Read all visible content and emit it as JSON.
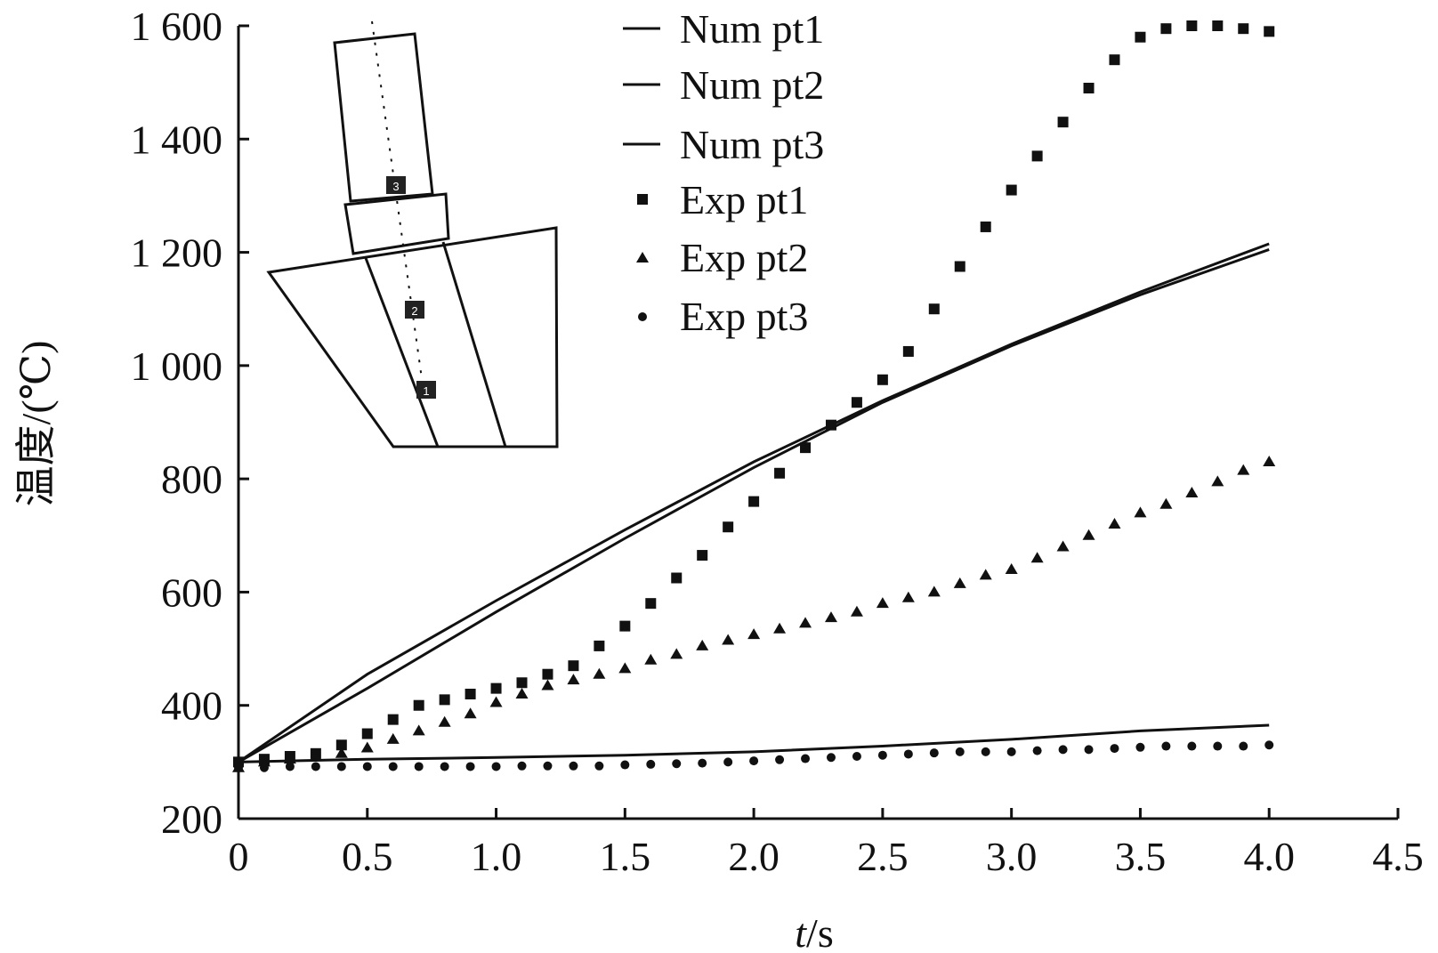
{
  "chart_data": {
    "type": "line",
    "xlabel_italic": "t",
    "xlabel_unit": "/s",
    "ylabel": "温度/(℃)",
    "xlim": [
      0,
      4.5
    ],
    "ylim": [
      200,
      1600
    ],
    "x_ticks": [
      0,
      0.5,
      1.0,
      1.5,
      2.0,
      2.5,
      3.0,
      3.5,
      4.0,
      4.5
    ],
    "x_tick_labels": [
      "0",
      "0.5",
      "1.0",
      "1.5",
      "2.0",
      "2.5",
      "3.0",
      "3.5",
      "4.0",
      "4.5"
    ],
    "y_ticks": [
      200,
      400,
      600,
      800,
      1000,
      1200,
      1400,
      1600
    ],
    "y_tick_labels": [
      "200",
      "400",
      "600",
      "800",
      "1 000",
      "1 200",
      "1 400",
      "1 600"
    ],
    "grid": false,
    "legend_position": "top-center",
    "series": [
      {
        "name": "Num pt1",
        "kind": "line",
        "x": [
          0,
          0.5,
          1.0,
          1.5,
          2.0,
          2.5,
          3.0,
          3.5,
          4.0
        ],
        "y": [
          300,
          430,
          565,
          695,
          820,
          935,
          1035,
          1125,
          1205
        ]
      },
      {
        "name": "Num pt2",
        "kind": "line",
        "x": [
          0,
          0.5,
          1.0,
          1.5,
          2.0,
          2.5,
          3.0,
          3.5,
          4.0
        ],
        "y": [
          300,
          455,
          585,
          710,
          830,
          938,
          1038,
          1130,
          1215
        ]
      },
      {
        "name": "Num pt3",
        "kind": "line",
        "x": [
          0,
          0.5,
          1.0,
          1.5,
          2.0,
          2.5,
          3.0,
          3.5,
          4.0
        ],
        "y": [
          300,
          305,
          308,
          312,
          318,
          328,
          340,
          355,
          365
        ]
      },
      {
        "name": "Exp pt1",
        "kind": "square",
        "x": [
          0,
          0.1,
          0.2,
          0.3,
          0.4,
          0.5,
          0.6,
          0.7,
          0.8,
          0.9,
          1.0,
          1.1,
          1.2,
          1.3,
          1.4,
          1.5,
          1.6,
          1.7,
          1.8,
          1.9,
          2.0,
          2.1,
          2.2,
          2.3,
          2.4,
          2.5,
          2.6,
          2.7,
          2.8,
          2.9,
          3.0,
          3.1,
          3.2,
          3.3,
          3.4,
          3.5,
          3.6,
          3.7,
          3.8,
          3.9,
          4.0
        ],
        "y": [
          300,
          305,
          310,
          315,
          330,
          350,
          375,
          400,
          410,
          420,
          430,
          440,
          455,
          470,
          505,
          540,
          580,
          625,
          665,
          715,
          760,
          810,
          855,
          895,
          935,
          975,
          1025,
          1100,
          1175,
          1245,
          1310,
          1370,
          1430,
          1490,
          1540,
          1580,
          1595,
          1600,
          1600,
          1595,
          1590
        ]
      },
      {
        "name": "Exp pt2",
        "kind": "triangle",
        "x": [
          0,
          0.1,
          0.2,
          0.3,
          0.4,
          0.5,
          0.6,
          0.7,
          0.8,
          0.9,
          1.0,
          1.1,
          1.2,
          1.3,
          1.4,
          1.5,
          1.6,
          1.7,
          1.8,
          1.9,
          2.0,
          2.1,
          2.2,
          2.3,
          2.4,
          2.5,
          2.6,
          2.7,
          2.8,
          2.9,
          3.0,
          3.1,
          3.2,
          3.3,
          3.4,
          3.5,
          3.6,
          3.7,
          3.8,
          3.9,
          4.0
        ],
        "y": [
          290,
          300,
          305,
          310,
          315,
          325,
          340,
          355,
          370,
          385,
          405,
          420,
          435,
          445,
          455,
          465,
          480,
          490,
          505,
          515,
          525,
          535,
          545,
          555,
          565,
          580,
          590,
          600,
          615,
          630,
          640,
          660,
          680,
          700,
          720,
          740,
          755,
          775,
          795,
          815,
          830
        ]
      },
      {
        "name": "Exp pt3",
        "kind": "dot",
        "x": [
          0,
          0.1,
          0.2,
          0.3,
          0.4,
          0.5,
          0.6,
          0.7,
          0.8,
          0.9,
          1.0,
          1.1,
          1.2,
          1.3,
          1.4,
          1.5,
          1.6,
          1.7,
          1.8,
          1.9,
          2.0,
          2.1,
          2.2,
          2.3,
          2.4,
          2.5,
          2.6,
          2.7,
          2.8,
          2.9,
          3.0,
          3.1,
          3.2,
          3.3,
          3.4,
          3.5,
          3.6,
          3.7,
          3.8,
          3.9,
          4.0
        ],
        "y": [
          290,
          290,
          292,
          292,
          292,
          292,
          292,
          292,
          292,
          292,
          292,
          293,
          293,
          293,
          293,
          295,
          296,
          297,
          298,
          300,
          302,
          304,
          306,
          308,
          310,
          312,
          314,
          316,
          318,
          318,
          318,
          320,
          322,
          322,
          324,
          326,
          328,
          328,
          328,
          328,
          330
        ]
      }
    ],
    "inset": {
      "point_labels": [
        "3",
        "2",
        "1"
      ]
    }
  }
}
